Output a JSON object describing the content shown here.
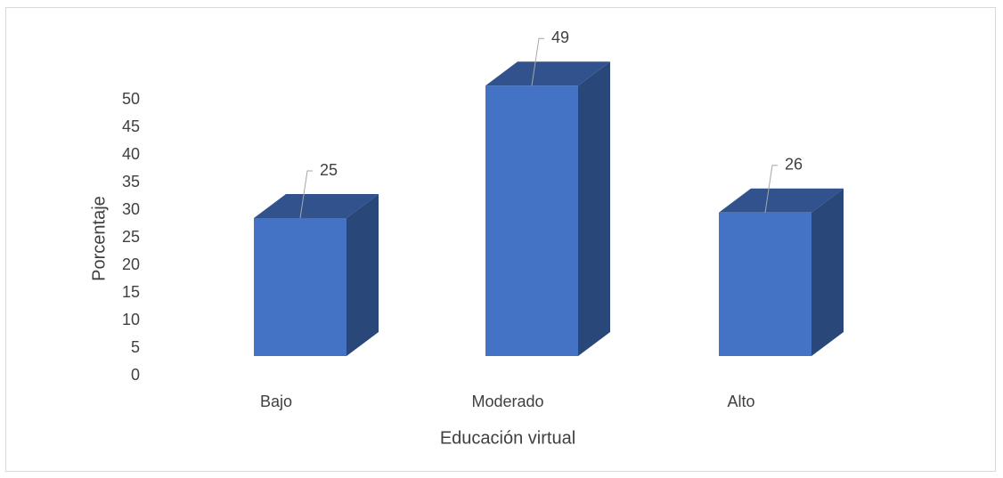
{
  "chart_data": {
    "type": "bar3d",
    "x_label": "Educación virtual",
    "y_label": "Porcentaje",
    "categories": [
      "Bajo",
      "Moderado",
      "Alto"
    ],
    "values": [
      25,
      49,
      26
    ],
    "color": "#4472c4",
    "ylim": [
      0,
      50
    ],
    "yticks": [
      0,
      5,
      10,
      15,
      20,
      25,
      30,
      35,
      40,
      45,
      50
    ]
  }
}
